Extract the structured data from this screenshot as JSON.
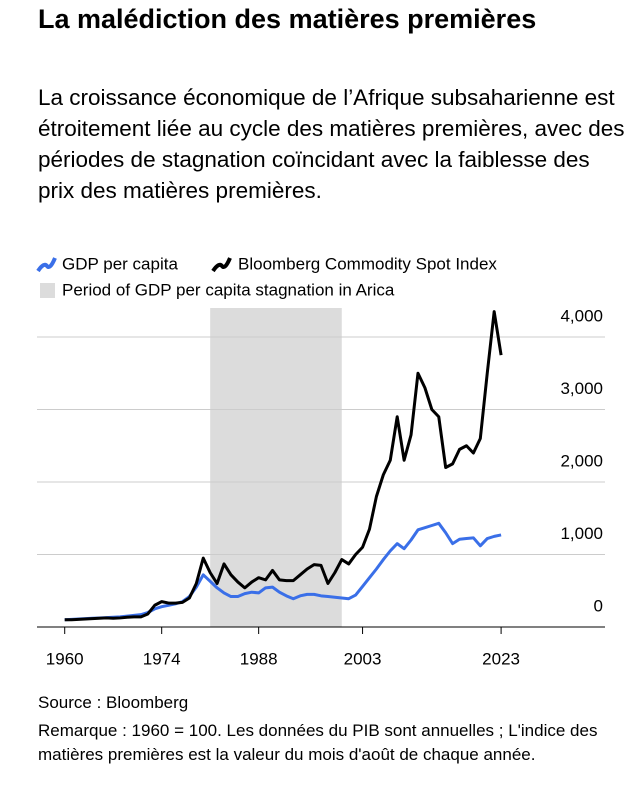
{
  "chart_data": {
    "type": "line",
    "title": "La malédiction des matières premières",
    "subtitle": "La croissance économique de l’Afrique subsaharienne est étroitement liée au cycle des matières premières, avec des périodes de stagnation coïncidant avec la faiblesse des prix des matières premières.",
    "shaded_label": "Period of GDP per capita stagnation in Arica",
    "shaded": [
      1981,
      2000
    ],
    "shaded_color": "#dcdcdc",
    "source": "Source : Bloomberg",
    "note": "Remarque : 1960 = 100. Les données du PIB sont annuelles ; L'indice des matières premières est la valeur du mois d'août de chaque année.",
    "x": [
      1960,
      1961,
      1962,
      1963,
      1964,
      1965,
      1966,
      1967,
      1968,
      1969,
      1970,
      1971,
      1972,
      1973,
      1974,
      1975,
      1976,
      1977,
      1978,
      1979,
      1980,
      1981,
      1982,
      1983,
      1984,
      1985,
      1986,
      1987,
      1988,
      1989,
      1990,
      1991,
      1992,
      1993,
      1994,
      1995,
      1996,
      1997,
      1998,
      1999,
      2000,
      2001,
      2002,
      2003,
      2004,
      2005,
      2006,
      2007,
      2008,
      2009,
      2010,
      2011,
      2012,
      2013,
      2014,
      2015,
      2016,
      2017,
      2018,
      2019,
      2020,
      2021,
      2022,
      2023
    ],
    "series": [
      {
        "name": "GDP per capita",
        "color": "#3a6fe8",
        "values": [
          100,
          105,
          110,
          115,
          120,
          125,
          130,
          135,
          140,
          150,
          160,
          170,
          200,
          250,
          280,
          300,
          320,
          350,
          420,
          550,
          720,
          630,
          540,
          470,
          420,
          420,
          460,
          480,
          470,
          540,
          550,
          480,
          430,
          390,
          430,
          450,
          450,
          430,
          420,
          410,
          400,
          390,
          440,
          560,
          680,
          800,
          930,
          1050,
          1150,
          1080,
          1200,
          1340,
          1370,
          1400,
          1430,
          1300,
          1150,
          1210,
          1220,
          1230,
          1120,
          1220,
          1250,
          1270
        ]
      },
      {
        "name": "Bloomberg Commodity Spot Index",
        "color": "#000000",
        "values": [
          100,
          100,
          105,
          110,
          115,
          120,
          125,
          120,
          125,
          135,
          140,
          140,
          180,
          300,
          350,
          330,
          330,
          340,
          400,
          600,
          950,
          750,
          600,
          870,
          720,
          620,
          540,
          620,
          680,
          650,
          780,
          650,
          640,
          640,
          720,
          800,
          860,
          850,
          600,
          750,
          930,
          870,
          1000,
          1100,
          1350,
          1800,
          2100,
          2300,
          2900,
          2300,
          2650,
          3500,
          3300,
          3000,
          2900,
          2200,
          2250,
          2450,
          2500,
          2400,
          2600,
          3500,
          4350,
          3750
        ]
      }
    ],
    "xlim": [
      1956,
      2038
    ],
    "xticks": [
      1960,
      1974,
      1988,
      2003,
      2023
    ],
    "ylim": [
      0,
      4400
    ],
    "yticks": [
      0,
      {
        "value": 1000,
        "label": "1,000"
      },
      {
        "value": 2000,
        "label": "2,000"
      },
      {
        "value": 3000,
        "label": "3,000"
      },
      {
        "value": 4000,
        "label": "4,000"
      }
    ],
    "grid": true
  }
}
